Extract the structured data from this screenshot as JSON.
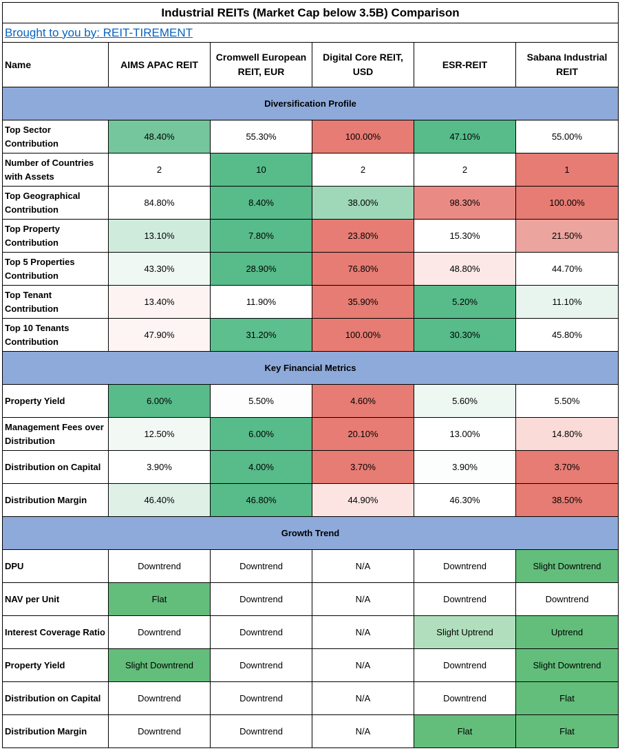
{
  "title": "Industrial REITs (Market Cap below 3.5B) Comparison",
  "credit": "Brought to you by: REIT-TIREMENT",
  "header": {
    "name_label": "Name",
    "reits": [
      "AIMS APAC REIT",
      "Cromwell European REIT, EUR",
      "Digital Core REIT, USD",
      "ESR-REIT",
      "Sabana Industrial REIT"
    ]
  },
  "colors": {
    "section_band": "#8eaadb",
    "green_strong": "#57bb8a",
    "green_trend": "#63be7b",
    "red_strong": "#e67c73",
    "link": "#0563c1"
  },
  "sections": [
    {
      "title": "Diversification Profile",
      "rows": [
        {
          "label": "Top Sector Contribution",
          "values": [
            "48.40%",
            "55.30%",
            "100.00%",
            "47.10%",
            "55.00%"
          ],
          "colors": [
            "#75c69c",
            "#ffffff",
            "#e67c73",
            "#57bb8a",
            "#ffffff"
          ]
        },
        {
          "label": "Number of Countries with Assets",
          "values": [
            "2",
            "10",
            "2",
            "2",
            "1"
          ],
          "colors": [
            "#ffffff",
            "#57bb8a",
            "#ffffff",
            "#ffffff",
            "#e67c73"
          ]
        },
        {
          "label": "Top Geographical Contribution",
          "values": [
            "84.80%",
            "8.40%",
            "38.00%",
            "98.30%",
            "100.00%"
          ],
          "colors": [
            "#ffffff",
            "#57bb8a",
            "#9fd8b9",
            "#e98b84",
            "#e67c73"
          ]
        },
        {
          "label": "Top Property Contribution",
          "values": [
            "13.10%",
            "7.80%",
            "23.80%",
            "15.30%",
            "21.50%"
          ],
          "colors": [
            "#cfebdc",
            "#57bb8a",
            "#e67c73",
            "#ffffff",
            "#eca49e"
          ]
        },
        {
          "label": "Top 5 Properties Contribution",
          "values": [
            "43.30%",
            "28.90%",
            "76.80%",
            "48.80%",
            "44.70%"
          ],
          "colors": [
            "#eff8f3",
            "#57bb8a",
            "#e67c73",
            "#fce8e7",
            "#ffffff"
          ]
        },
        {
          "label": "Top Tenant Contribution",
          "values": [
            "13.40%",
            "11.90%",
            "35.90%",
            "5.20%",
            "11.10%"
          ],
          "colors": [
            "#fdf3f2",
            "#ffffff",
            "#e67c73",
            "#57bb8a",
            "#e8f5ee"
          ]
        },
        {
          "label": "Top 10 Tenants Contribution",
          "values": [
            "47.90%",
            "31.20%",
            "100.00%",
            "30.30%",
            "45.80%"
          ],
          "colors": [
            "#fdf5f4",
            "#5dbe8e",
            "#e67c73",
            "#57bb8a",
            "#ffffff"
          ]
        }
      ]
    },
    {
      "title": "Key Financial Metrics",
      "rows": [
        {
          "label": "Property Yield",
          "values": [
            "6.00%",
            "5.50%",
            "4.60%",
            "5.60%",
            "5.50%"
          ],
          "colors": [
            "#57bb8a",
            "#fdfdfd",
            "#e67c73",
            "#eef8f2",
            "#ffffff"
          ]
        },
        {
          "label": "Management Fees over Distribution",
          "values": [
            "12.50%",
            "6.00%",
            "20.10%",
            "13.00%",
            "14.80%"
          ],
          "colors": [
            "#f2f9f5",
            "#57bb8a",
            "#e67c73",
            "#ffffff",
            "#fadbd8"
          ]
        },
        {
          "label": "Distribution on Capital",
          "values": [
            "3.90%",
            "4.00%",
            "3.70%",
            "3.90%",
            "3.70%"
          ],
          "colors": [
            "#ffffff",
            "#57bb8a",
            "#e67c73",
            "#fcfefd",
            "#e67c73"
          ]
        },
        {
          "label": "Distribution Margin",
          "values": [
            "46.40%",
            "46.80%",
            "44.90%",
            "46.30%",
            "38.50%"
          ],
          "colors": [
            "#dff1e7",
            "#57bb8a",
            "#fbe4e2",
            "#ffffff",
            "#e67c73"
          ]
        }
      ]
    },
    {
      "title": "Growth Trend",
      "rows": [
        {
          "label": "DPU",
          "values": [
            "Downtrend",
            "Downtrend",
            "N/A",
            "Downtrend",
            "Slight Downtrend"
          ],
          "colors": [
            "#ffffff",
            "#ffffff",
            "#ffffff",
            "#ffffff",
            "#63be7b"
          ]
        },
        {
          "label": "NAV per Unit",
          "values": [
            "Flat",
            "Downtrend",
            "N/A",
            "Downtrend",
            "Downtrend"
          ],
          "colors": [
            "#63be7b",
            "#ffffff",
            "#ffffff",
            "#ffffff",
            "#ffffff"
          ]
        },
        {
          "label": "Interest Coverage Ratio",
          "values": [
            "Downtrend",
            "Downtrend",
            "N/A",
            "Slight Uptrend",
            "Uptrend"
          ],
          "colors": [
            "#ffffff",
            "#ffffff",
            "#ffffff",
            "#b1dfbd",
            "#63be7b"
          ]
        },
        {
          "label": "Property Yield",
          "values": [
            "Slight Downtrend",
            "Downtrend",
            "N/A",
            "Downtrend",
            "Slight Downtrend"
          ],
          "colors": [
            "#63be7b",
            "#ffffff",
            "#ffffff",
            "#ffffff",
            "#63be7b"
          ]
        },
        {
          "label": "Distribution on Capital",
          "values": [
            "Downtrend",
            "Downtrend",
            "N/A",
            "Downtrend",
            "Flat"
          ],
          "colors": [
            "#ffffff",
            "#ffffff",
            "#ffffff",
            "#ffffff",
            "#63be7b"
          ]
        },
        {
          "label": "Distribution Margin",
          "values": [
            "Downtrend",
            "Downtrend",
            "N/A",
            "Flat",
            "Flat"
          ],
          "colors": [
            "#ffffff",
            "#ffffff",
            "#ffffff",
            "#63be7b",
            "#63be7b"
          ]
        }
      ]
    }
  ]
}
